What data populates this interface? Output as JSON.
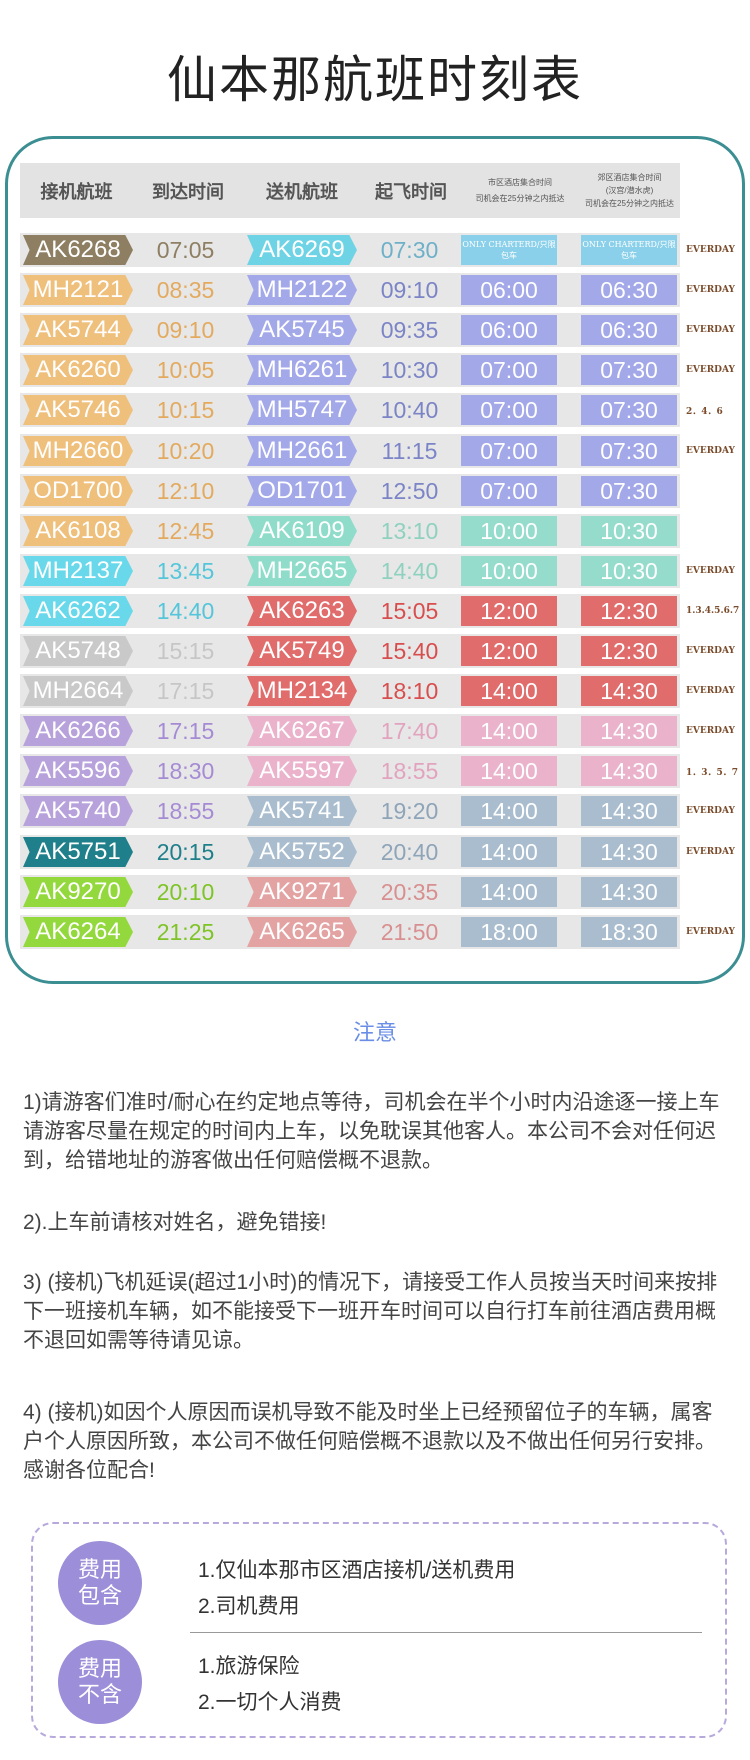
{
  "page": {
    "title": "仙本那航班时刻表"
  },
  "table": {
    "headers": {
      "pickup_flight": "接机航班",
      "arrival_time": "到达时间",
      "dropoff_flight": "送机航班",
      "departure_time": "起飞时间",
      "city_pickup": [
        "市区酒店集合时间",
        "司机会在25分钟之内抵达"
      ],
      "suburb_pickup": [
        "郊区酒店集合时间",
        "(汉宫/潜水虎)",
        "司机会在25分钟之内抵达"
      ]
    },
    "rows": [
      {
        "pickup": "AK6268",
        "arrive": "07:05",
        "dropoff": "AK6269",
        "depart": "07:30",
        "city": "ONLY CHARTERD/只限包车",
        "suburb": "ONLY CHARTERD/只限包车",
        "freq": "EVERDAY",
        "pc": "#8e7f63",
        "dc": "#6fd3e6",
        "ac": "#8e7f63",
        "tc": "#6fb0c9",
        "bc": "#8bd0ea"
      },
      {
        "pickup": "MH2121",
        "arrive": "08:35",
        "dropoff": "MH2122",
        "depart": "09:10",
        "city": "06:00",
        "suburb": "06:30",
        "freq": "EVERDAY",
        "pc": "#efbf7c",
        "dc": "#a3a8e8",
        "ac": "#e3aa5f",
        "tc": "#7b84c6",
        "bc": "#a3a8e8"
      },
      {
        "pickup": "AK5744",
        "arrive": "09:10",
        "dropoff": "AK5745",
        "depart": "09:35",
        "city": "06:00",
        "suburb": "06:30",
        "freq": "EVERDAY",
        "pc": "#efbf7c",
        "dc": "#a3a8e8",
        "ac": "#e3aa5f",
        "tc": "#7b84c6",
        "bc": "#a3a8e8"
      },
      {
        "pickup": "AK6260",
        "arrive": "10:05",
        "dropoff": "MH6261",
        "depart": "10:30",
        "city": "07:00",
        "suburb": "07:30",
        "freq": "EVERDAY",
        "pc": "#efbf7c",
        "dc": "#a3a8e8",
        "ac": "#e3aa5f",
        "tc": "#7b84c6",
        "bc": "#a3a8e8"
      },
      {
        "pickup": "AK5746",
        "arrive": "10:15",
        "dropoff": "MH5747",
        "depart": "10:40",
        "city": "07:00",
        "suburb": "07:30",
        "freq": "2．4．6",
        "pc": "#efbf7c",
        "dc": "#a3a8e8",
        "ac": "#e3aa5f",
        "tc": "#7b84c6",
        "bc": "#a3a8e8"
      },
      {
        "pickup": "MH2660",
        "arrive": "10:20",
        "dropoff": "MH2661",
        "depart": "11:15",
        "city": "07:00",
        "suburb": "07:30",
        "freq": "EVERDAY",
        "pc": "#efbf7c",
        "dc": "#a3a8e8",
        "ac": "#e3aa5f",
        "tc": "#7b84c6",
        "bc": "#a3a8e8"
      },
      {
        "pickup": "OD1700",
        "arrive": "12:10",
        "dropoff": "OD1701",
        "depart": "12:50",
        "city": "07:00",
        "suburb": "07:30",
        "freq": "",
        "pc": "#efbf7c",
        "dc": "#a3a8e8",
        "ac": "#e3aa5f",
        "tc": "#7b84c6",
        "bc": "#a3a8e8"
      },
      {
        "pickup": "AK6108",
        "arrive": "12:45",
        "dropoff": "AK6109",
        "depart": "13:10",
        "city": "10:00",
        "suburb": "10:30",
        "freq": "",
        "pc": "#efbf7c",
        "dc": "#8fdccb",
        "ac": "#e3aa5f",
        "tc": "#8fd1bf",
        "bc": "#95dccd"
      },
      {
        "pickup": "MH2137",
        "arrive": "13:45",
        "dropoff": "MH2665",
        "depart": "14:40",
        "city": "10:00",
        "suburb": "10:30",
        "freq": "EVERDAY",
        "pc": "#68d8ea",
        "dc": "#8fdccb",
        "ac": "#55c6da",
        "tc": "#8fd1bf",
        "bc": "#95dccd"
      },
      {
        "pickup": "AK6262",
        "arrive": "14:40",
        "dropoff": "AK6263",
        "depart": "15:05",
        "city": "12:00",
        "suburb": "12:30",
        "freq": "1.3.4.5.6.7",
        "pc": "#68d8ea",
        "dc": "#e06c6c",
        "ac": "#55c6da",
        "tc": "#d84e4e",
        "bc": "#e06c6c"
      },
      {
        "pickup": "AK5748",
        "arrive": "15:15",
        "dropoff": "AK5749",
        "depart": "15:40",
        "city": "12:00",
        "suburb": "12:30",
        "freq": "EVERDAY",
        "pc": "#c9c9c9",
        "dc": "#e06c6c",
        "ac": "#c6c6c6",
        "tc": "#d84e4e",
        "bc": "#e06c6c"
      },
      {
        "pickup": "MH2664",
        "arrive": "17:15",
        "dropoff": "MH2134",
        "depart": "18:10",
        "city": "14:00",
        "suburb": "14:30",
        "freq": "EVERDAY",
        "pc": "#c9c9c9",
        "dc": "#e06c6c",
        "ac": "#c6c6c6",
        "tc": "#d84e4e",
        "bc": "#e06c6c"
      },
      {
        "pickup": "AK6266",
        "arrive": "17:15",
        "dropoff": "AK6267",
        "depart": "17:40",
        "city": "14:00",
        "suburb": "14:30",
        "freq": "EVERDAY",
        "pc": "#b7a2dc",
        "dc": "#eab3cb",
        "ac": "#a58bd4",
        "tc": "#e2a3be",
        "bc": "#eab3cb"
      },
      {
        "pickup": "AK5596",
        "arrive": "18:30",
        "dropoff": "AK5597",
        "depart": "18:55",
        "city": "14:00",
        "suburb": "14:30",
        "freq": "1．3．5．7",
        "pc": "#b7a2dc",
        "dc": "#eab3cb",
        "ac": "#a58bd4",
        "tc": "#e2a3be",
        "bc": "#eab3cb"
      },
      {
        "pickup": "AK5740",
        "arrive": "18:55",
        "dropoff": "AK5741",
        "depart": "19:20",
        "city": "14:00",
        "suburb": "14:30",
        "freq": "EVERDAY",
        "pc": "#b7a2dc",
        "dc": "#a9bdcf",
        "ac": "#a58bd4",
        "tc": "#8ea4b8",
        "bc": "#a9bdcf"
      },
      {
        "pickup": "AK5751",
        "arrive": "20:15",
        "dropoff": "AK5752",
        "depart": "20:40",
        "city": "14:00",
        "suburb": "14:30",
        "freq": "EVERDAY",
        "pc": "#1f7f8a",
        "dc": "#a9bdcf",
        "ac": "#1f7f8a",
        "tc": "#8ea4b8",
        "bc": "#a9bdcf"
      },
      {
        "pickup": "AK9270",
        "arrive": "20:10",
        "dropoff": "AK9271",
        "depart": "20:35",
        "city": "14:00",
        "suburb": "14:30",
        "freq": "",
        "pc": "#93d83c",
        "dc": "#e4a3a3",
        "ac": "#7fc427",
        "tc": "#d88f8f",
        "bc": "#a9bdcf"
      },
      {
        "pickup": "AK6264",
        "arrive": "21:25",
        "dropoff": "AK6265",
        "depart": "21:50",
        "city": "18:00",
        "suburb": "18:30",
        "freq": "EVERDAY",
        "pc": "#93d83c",
        "dc": "#e4a3a3",
        "ac": "#7fc427",
        "tc": "#d88f8f",
        "bc": "#a9bdcf"
      }
    ]
  },
  "notice": {
    "title": "注意",
    "items": [
      "1)请游客们准时/耐心在约定地点等待，司机会在半个小时内沿途逐一接上车请游客尽量在规定的时间内上车，以免耽误其他客人。本公司不会对任何迟到，给错地址的游客做出任何赔偿概不退款。",
      "2).上车前请核对姓名，避免错接!",
      "3) (接机)飞机延误(超过1小时)的情况下，请接受工作人员按当天时间来按排下一班接机车辆，如不能接受下一班开车时间可以自行打车前往酒店费用概不退回如需等待请见谅。",
      "4) (接机)如因个人原因而误机导致不能及时坐上已经预留位子的车辆，属客户个人原因所致，本公司不做任何赔偿概不退款以及不做出任何另行安排。感谢各位配合!"
    ]
  },
  "fees": {
    "included": {
      "label_1": "费用",
      "label_2": "包含",
      "items": [
        "1.仅仙本那市区酒店接机/送机费用",
        "2.司机费用"
      ]
    },
    "excluded": {
      "label_1": "费用",
      "label_2": "不含",
      "items": [
        "1.旅游保险",
        "2.一切个人消费"
      ]
    }
  }
}
